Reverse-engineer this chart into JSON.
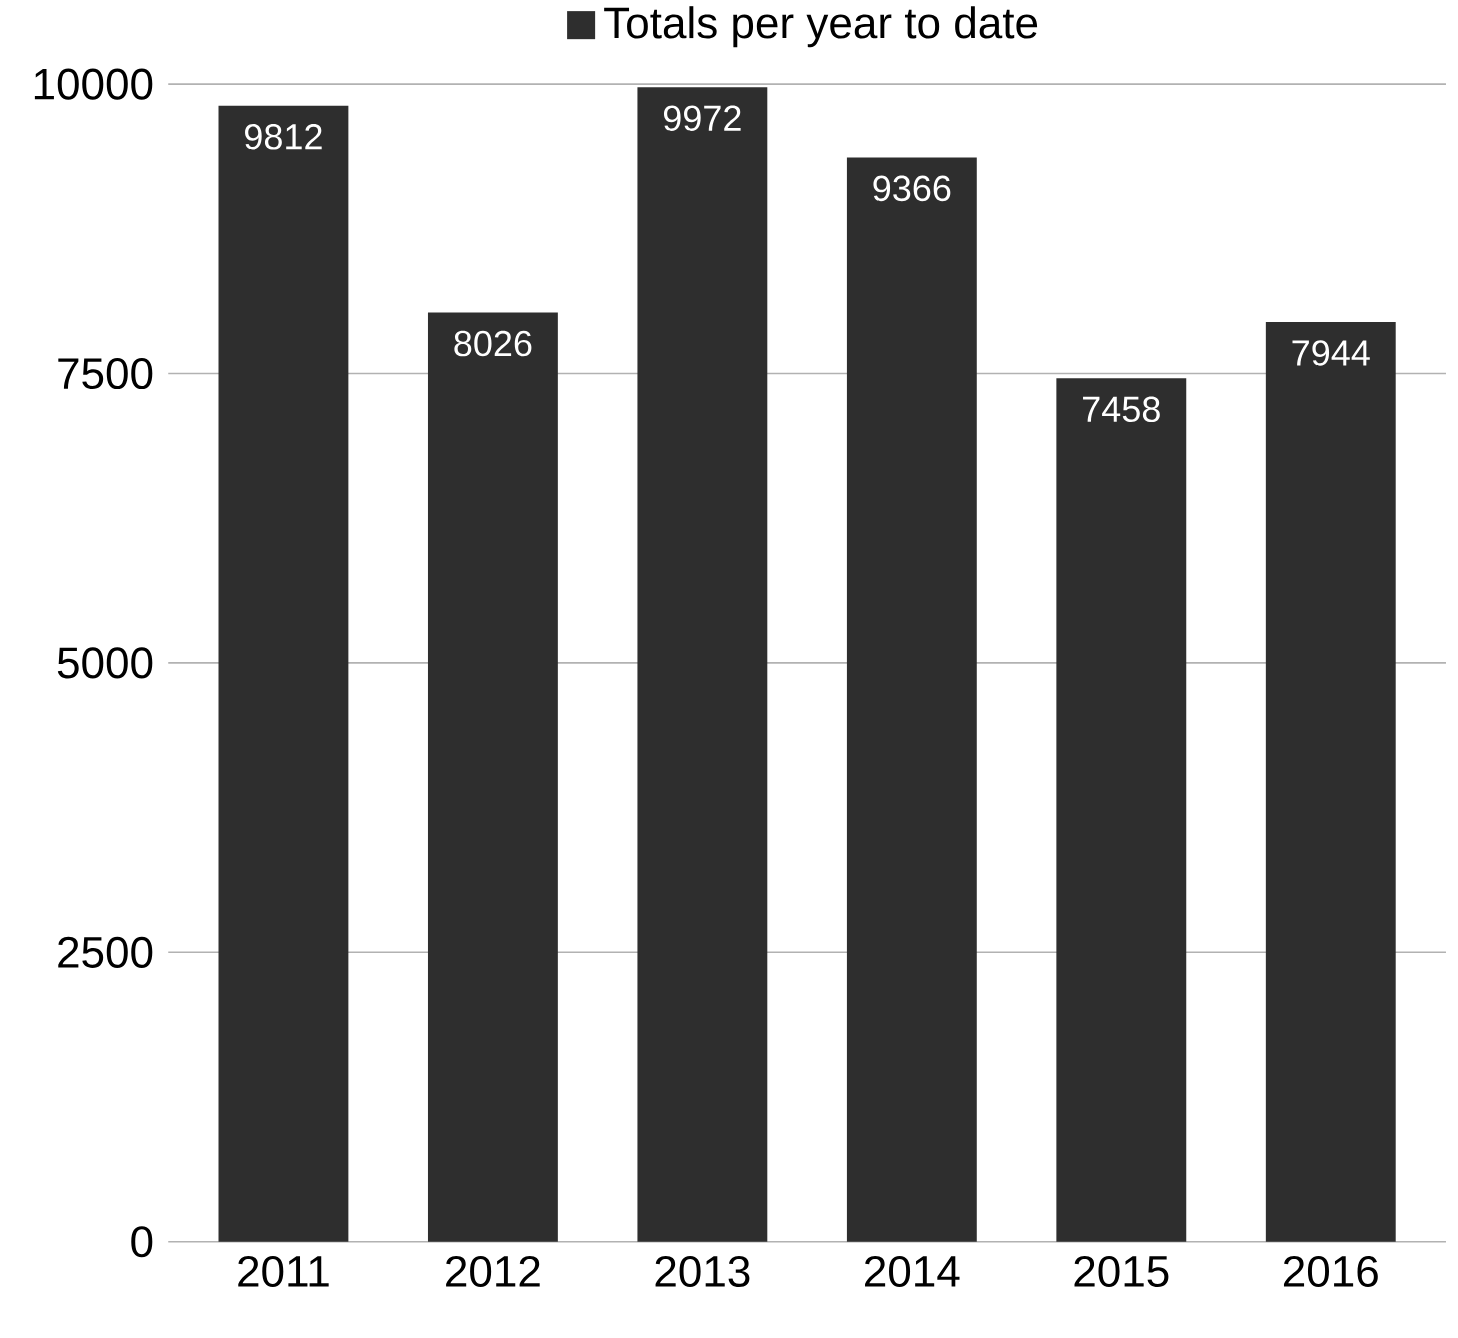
{
  "chart_data": {
    "type": "bar",
    "categories": [
      "2011",
      "2012",
      "2013",
      "2014",
      "2015",
      "2016"
    ],
    "series": [
      {
        "name": "Totals per year to date",
        "color": "#2e2e2e",
        "values": [
          9812,
          8026,
          9972,
          9366,
          7458,
          7944
        ]
      }
    ],
    "ylim": [
      0,
      10000
    ],
    "yticks": [
      0,
      2500,
      5000,
      7500,
      10000
    ],
    "grid": "y",
    "legend": "top",
    "data_labels": true
  }
}
